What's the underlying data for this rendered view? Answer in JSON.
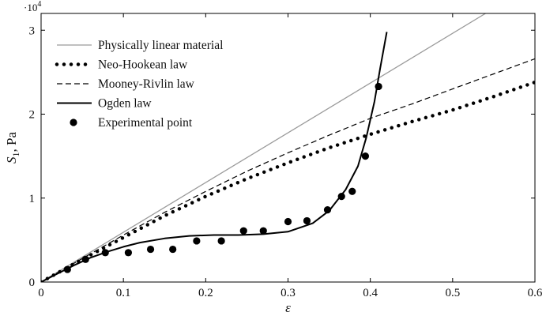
{
  "chart_data": {
    "type": "line",
    "xlabel": "ε",
    "ylabel_symbol": "S",
    "ylabel_subscript": "1",
    "ylabel_unit": ", Pa",
    "y_multiplier_base": "·10",
    "y_multiplier_exp": "4",
    "xlim": [
      0,
      0.6
    ],
    "ylim": [
      0,
      3.2
    ],
    "xticks": [
      0,
      0.1,
      0.2,
      0.3,
      0.4,
      0.5,
      0.6
    ],
    "xtick_labels": [
      "0",
      "0.1",
      "0.2",
      "0.3",
      "0.4",
      "0.5",
      "0.6"
    ],
    "yticks": [
      0,
      1,
      2,
      3
    ],
    "ytick_labels": [
      "0",
      "1",
      "2",
      "3"
    ],
    "grid": false,
    "legend_position": "top-left",
    "series": [
      {
        "name": "Physically linear material",
        "style": "line",
        "color": "#9a9a9a",
        "x": [
          0,
          0.54
        ],
        "y": [
          0,
          3.2
        ]
      },
      {
        "name": "Neo-Hookean law",
        "style": "dotted",
        "color": "#000000",
        "x": [
          0,
          0.05,
          0.1,
          0.15,
          0.2,
          0.25,
          0.3,
          0.35,
          0.4,
          0.45,
          0.5,
          0.55,
          0.6
        ],
        "y": [
          0,
          0.27,
          0.53,
          0.79,
          1.02,
          1.23,
          1.42,
          1.6,
          1.76,
          1.91,
          2.05,
          2.21,
          2.38
        ]
      },
      {
        "name": "Mooney-Rivlin law",
        "style": "dashed",
        "color": "#000000",
        "x": [
          0,
          0.05,
          0.1,
          0.15,
          0.2,
          0.25,
          0.3,
          0.35,
          0.4,
          0.45,
          0.5,
          0.55,
          0.6
        ],
        "y": [
          0,
          0.28,
          0.56,
          0.83,
          1.08,
          1.32,
          1.54,
          1.75,
          1.95,
          2.12,
          2.3,
          2.48,
          2.66
        ]
      },
      {
        "name": "Ogden law",
        "style": "line",
        "color": "#000000",
        "x": [
          0,
          0.02,
          0.04,
          0.06,
          0.08,
          0.1,
          0.12,
          0.15,
          0.18,
          0.21,
          0.24,
          0.27,
          0.3,
          0.33,
          0.35,
          0.37,
          0.385,
          0.395,
          0.405,
          0.412,
          0.42
        ],
        "y": [
          0,
          0.1,
          0.2,
          0.29,
          0.36,
          0.42,
          0.47,
          0.52,
          0.55,
          0.56,
          0.56,
          0.57,
          0.6,
          0.7,
          0.85,
          1.1,
          1.38,
          1.72,
          2.15,
          2.55,
          2.98
        ]
      },
      {
        "name": "Experimental point",
        "style": "markers",
        "color": "#000000",
        "x": [
          0.032,
          0.054,
          0.078,
          0.106,
          0.133,
          0.16,
          0.189,
          0.219,
          0.246,
          0.27,
          0.3,
          0.323,
          0.348,
          0.365,
          0.378,
          0.394,
          0.41
        ],
        "y": [
          0.15,
          0.27,
          0.35,
          0.35,
          0.39,
          0.39,
          0.49,
          0.49,
          0.61,
          0.61,
          0.72,
          0.73,
          0.86,
          1.02,
          1.08,
          1.5,
          2.33
        ]
      }
    ]
  }
}
